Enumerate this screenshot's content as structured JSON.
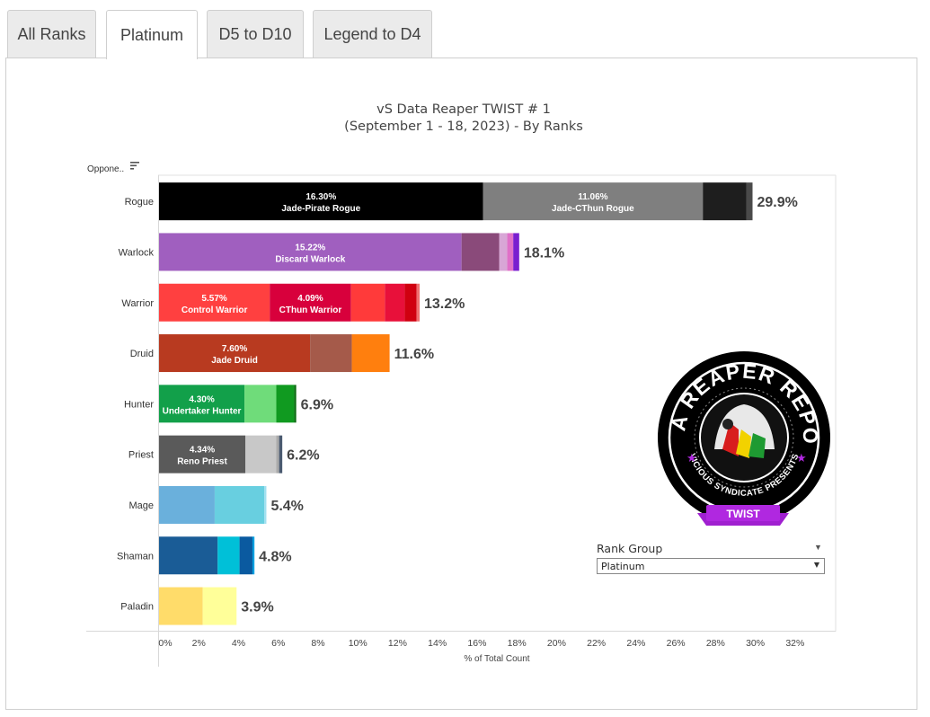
{
  "tabs": [
    {
      "label": "All Ranks",
      "active": false
    },
    {
      "label": "Platinum",
      "active": true
    },
    {
      "label": "D5 to D10",
      "active": false
    },
    {
      "label": "Legend to D4",
      "active": false
    }
  ],
  "logo": {
    "top_text": "DATA REAPER REPORT",
    "bottom_text": "VICIOUS SYNDICATE PRESENTS",
    "ribbon": "TWIST"
  },
  "filter": {
    "label": "Rank Group",
    "selected": "Platinum"
  },
  "colors": {
    "bar_label_text": "#ffffff",
    "total_label_text": "#444444"
  },
  "chart_data": {
    "type": "bar",
    "orientation": "horizontal",
    "stacked": true,
    "title": "vS Data Reaper TWIST # 1",
    "subtitle": "(September 1 - 18, 2023) - By Ranks",
    "ylabel": "Oppone..",
    "xlabel": "% of Total Count",
    "xlim": [
      0,
      33
    ],
    "xticks": [
      "0%",
      "2%",
      "4%",
      "6%",
      "8%",
      "10%",
      "12%",
      "14%",
      "16%",
      "18%",
      "20%",
      "22%",
      "24%",
      "26%",
      "28%",
      "30%",
      "32%"
    ],
    "grid": false,
    "categories": [
      "Rogue",
      "Warlock",
      "Warrior",
      "Druid",
      "Hunter",
      "Priest",
      "Mage",
      "Shaman",
      "Paladin"
    ],
    "totals": [
      "29.9%",
      "18.1%",
      "13.2%",
      "11.6%",
      "6.9%",
      "6.2%",
      "5.4%",
      "4.8%",
      "3.9%"
    ],
    "segments": [
      [
        {
          "value": 16.3,
          "color": "#000000",
          "pct": "16.30%",
          "name": "Jade-Pirate Rogue"
        },
        {
          "value": 11.06,
          "color": "#7f7f7f",
          "pct": "11.06%",
          "name": "Jade-CThun Rogue"
        },
        {
          "value": 2.2,
          "color": "#1e1e1e"
        },
        {
          "value": 0.3,
          "color": "#4a4a4a"
        }
      ],
      [
        {
          "value": 15.22,
          "color": "#a05fbf",
          "pct": "15.22%",
          "name": "Discard Warlock"
        },
        {
          "value": 1.9,
          "color": "#8a4a7a"
        },
        {
          "value": 0.4,
          "color": "#d8a6d6"
        },
        {
          "value": 0.3,
          "color": "#e070c8"
        },
        {
          "value": 0.3,
          "color": "#7a1fcf"
        }
      ],
      [
        {
          "value": 5.57,
          "color": "#ff4040",
          "pct": "5.57%",
          "name": "Control Warrior"
        },
        {
          "value": 4.09,
          "color": "#d8003c",
          "pct": "4.09%",
          "name": "CThun Warrior"
        },
        {
          "value": 1.7,
          "color": "#ff3a3a"
        },
        {
          "value": 1.0,
          "color": "#e8103a"
        },
        {
          "value": 0.6,
          "color": "#d00010"
        },
        {
          "value": 0.15,
          "color": "#f07070"
        }
      ],
      [
        {
          "value": 7.6,
          "color": "#b83a20",
          "pct": "7.60%",
          "name": "Jade Druid"
        },
        {
          "value": 2.1,
          "color": "#a55a4a"
        },
        {
          "value": 1.9,
          "color": "#ff7f0e"
        }
      ],
      [
        {
          "value": 4.3,
          "color": "#12a04a",
          "pct": "4.30%",
          "name": "Undertaker Hunter"
        },
        {
          "value": 1.6,
          "color": "#6fdc7a"
        },
        {
          "value": 0.9,
          "color": "#109a20"
        },
        {
          "value": 0.1,
          "color": "#0a6a10"
        }
      ],
      [
        {
          "value": 4.34,
          "color": "#5a5a5a",
          "pct": "4.34%",
          "name": "Reno Priest"
        },
        {
          "value": 1.55,
          "color": "#c8c8c8"
        },
        {
          "value": 0.15,
          "color": "#aaaaaa"
        },
        {
          "value": 0.16,
          "color": "#4a5a70"
        }
      ],
      [
        {
          "value": 2.8,
          "color": "#6ab0dc"
        },
        {
          "value": 2.5,
          "color": "#68cfe0"
        },
        {
          "value": 0.1,
          "color": "#a0e0f0"
        }
      ],
      [
        {
          "value": 2.95,
          "color": "#1a5c96"
        },
        {
          "value": 1.1,
          "color": "#00c0d8"
        },
        {
          "value": 0.65,
          "color": "#0a5aa0"
        },
        {
          "value": 0.1,
          "color": "#00a0e0"
        }
      ],
      [
        {
          "value": 2.2,
          "color": "#ffdc6a"
        },
        {
          "value": 1.7,
          "color": "#ffff99"
        }
      ]
    ]
  }
}
